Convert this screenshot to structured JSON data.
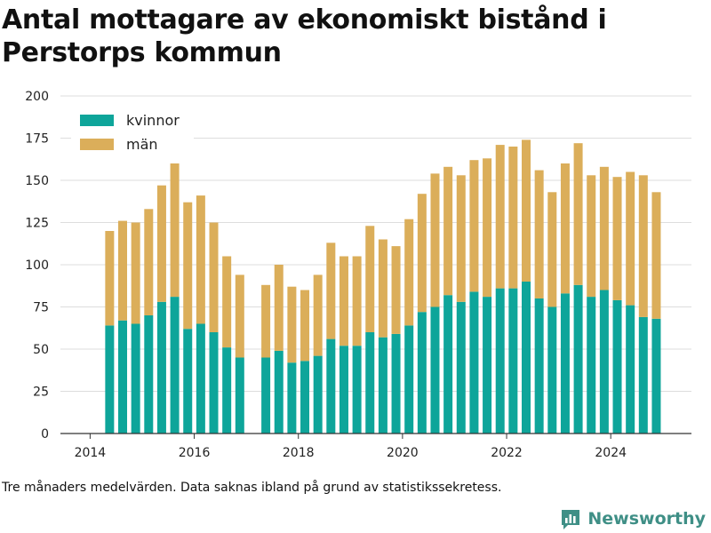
{
  "title": "Antal mottagare av ekonomiskt bistånd i Perstorps kommun",
  "footnote": "Tre månaders medelvärden. Data saknas ibland på grund av statistikssekretess.",
  "brand": {
    "name": "Newsworthy",
    "icon": "bar-chart-logo-icon",
    "color": "#3f8f86"
  },
  "colors": {
    "kvinnor": "#0ea59a",
    "man": "#dbae5a",
    "grid": "#dddddd",
    "axis": "#333333"
  },
  "chart_data": {
    "type": "bar",
    "stacked": true,
    "xlabel": "",
    "ylabel": "",
    "ylim": [
      0,
      200
    ],
    "yticks": [
      0,
      25,
      50,
      75,
      100,
      125,
      150,
      175,
      200
    ],
    "xticks": [
      "2014",
      "2016",
      "2018",
      "2020",
      "2022",
      "2024"
    ],
    "grid": true,
    "legend_position": "top-left",
    "categories": [
      "2014-05",
      "2014-08",
      "2014-11",
      "2015-02",
      "2015-05",
      "2015-08",
      "2015-11",
      "2016-02",
      "2016-05",
      "2016-08",
      "2016-11",
      "2017-05",
      "2017-08",
      "2017-11",
      "2018-02",
      "2018-05",
      "2018-08",
      "2018-11",
      "2019-02",
      "2019-05",
      "2019-08",
      "2019-11",
      "2020-02",
      "2020-05",
      "2020-08",
      "2020-11",
      "2021-02",
      "2021-05",
      "2021-08",
      "2021-11",
      "2022-02",
      "2022-05",
      "2022-08",
      "2022-11",
      "2023-02",
      "2023-05",
      "2023-08",
      "2023-11",
      "2024-02",
      "2024-05",
      "2024-08",
      "2024-11"
    ],
    "series": [
      {
        "name": "kvinnor",
        "values": [
          64,
          67,
          65,
          70,
          78,
          81,
          62,
          65,
          60,
          51,
          45,
          45,
          49,
          42,
          43,
          46,
          56,
          52,
          52,
          60,
          57,
          59,
          64,
          72,
          75,
          82,
          78,
          84,
          81,
          86,
          86,
          90,
          80,
          75,
          83,
          88,
          81,
          85,
          79,
          76,
          69,
          68
        ]
      },
      {
        "name": "män",
        "values": [
          56,
          59,
          60,
          63,
          69,
          79,
          75,
          76,
          65,
          54,
          49,
          43,
          51,
          45,
          42,
          48,
          57,
          53,
          53,
          63,
          58,
          52,
          63,
          70,
          79,
          76,
          75,
          78,
          82,
          85,
          84,
          84,
          76,
          68,
          77,
          84,
          72,
          73,
          73,
          79,
          84,
          75
        ]
      }
    ]
  }
}
